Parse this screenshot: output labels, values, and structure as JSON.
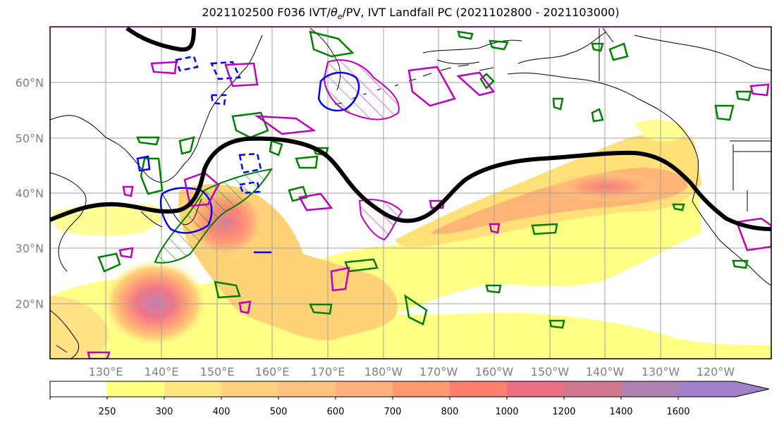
{
  "title": "2021102500 F036 IVT/θ_e/PV, IVT Landfall PC (2021102800 - 2021103000)",
  "title_text": "2021102500 F036 IVT/",
  "title_theta": "θ",
  "title_sub": "e",
  "title_rest": "/PV, IVT Landfall PC (2021102800 - 2021103000)",
  "map": {
    "latitude_labels": [
      "60°N",
      "50°N",
      "40°N",
      "30°N",
      "20°N"
    ],
    "longitude_labels": [
      "130°E",
      "140°E",
      "150°E",
      "160°E",
      "170°E",
      "180°W",
      "170°W",
      "160°W",
      "150°W",
      "140°W",
      "130°W",
      "120°W"
    ],
    "colors": {
      "coast": "#000000",
      "jet": "#000000",
      "green_contour": "#008000",
      "blue_contour": "#0000ff",
      "magenta_contour": "#c000c0",
      "grid": "#a0a0a0"
    }
  },
  "colorbar": {
    "ticks": [
      "250",
      "300",
      "400",
      "500",
      "600",
      "700",
      "800",
      "1000",
      "1200",
      "1400",
      "1600"
    ],
    "colors": [
      "#ffffff",
      "#ffff80",
      "#ffe680",
      "#ffd080",
      "#ffc080",
      "#ffb080",
      "#ff9a70",
      "#ff8070",
      "#e87080",
      "#d07890",
      "#b080b0",
      "#a080c8"
    ]
  }
}
